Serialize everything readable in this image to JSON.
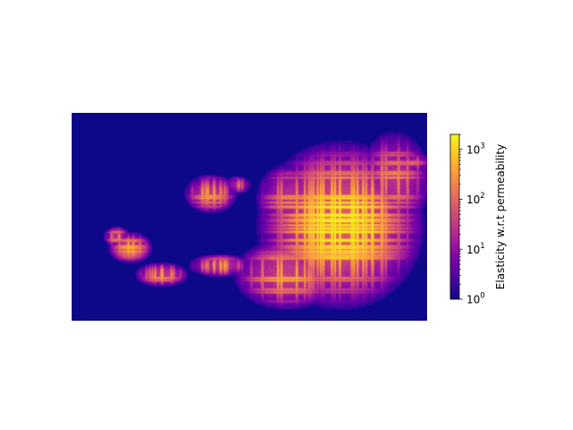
{
  "chart_data": {
    "type": "heatmap",
    "title": "",
    "xlabel": "",
    "ylabel": "",
    "axes_visible": false,
    "grid": false,
    "colormap": "plasma",
    "colorbar": {
      "label": "Elasticity w.r.t permeability",
      "scale": "log",
      "range": [
        1,
        2000
      ],
      "ticks": [
        {
          "value": 1,
          "base": "10",
          "exp": "0"
        },
        {
          "value": 10,
          "base": "10",
          "exp": "1"
        },
        {
          "value": 100,
          "base": "10",
          "exp": "2"
        },
        {
          "value": 1000,
          "base": "10",
          "exp": "3"
        }
      ],
      "placement": "right"
    },
    "field_description_values": {
      "background_value": 1,
      "max_value": 2000
    }
  },
  "colors": {
    "background_min": "#0d0887",
    "plasma_stops": [
      "#0d0887",
      "#46039f",
      "#7201a8",
      "#9c179e",
      "#bd3786",
      "#d8576b",
      "#ed7953",
      "#fb9f3a",
      "#fdca26",
      "#f0f921"
    ]
  }
}
